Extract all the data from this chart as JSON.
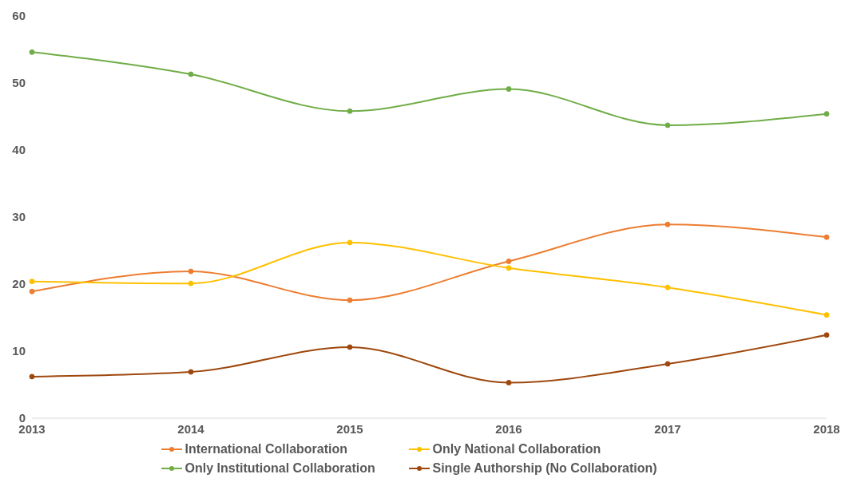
{
  "chart_data": {
    "type": "line",
    "categories": [
      "2013",
      "2014",
      "2015",
      "2016",
      "2017",
      "2018"
    ],
    "series": [
      {
        "name": "International Collaboration",
        "color": "#ed7d31",
        "values": [
          18.9,
          21.9,
          17.6,
          23.4,
          28.9,
          27.0
        ]
      },
      {
        "name": "Only National Collaboration",
        "color": "#ffc000",
        "values": [
          20.4,
          20.1,
          26.2,
          22.4,
          19.5,
          15.4
        ]
      },
      {
        "name": "Only Institutional Collaboration",
        "color": "#70ad47",
        "values": [
          54.6,
          51.3,
          45.8,
          49.1,
          43.7,
          45.4
        ]
      },
      {
        "name": "Single Authorship (No Collaboration)",
        "color": "#9e480e",
        "values": [
          6.2,
          6.9,
          10.6,
          5.3,
          8.1,
          12.4
        ]
      }
    ],
    "ylim": [
      0,
      60
    ],
    "yticks": [
      0,
      10,
      20,
      30,
      40,
      50,
      60
    ],
    "grid": false,
    "legend": "bottom",
    "marker": "circle",
    "line_style": "solid"
  }
}
